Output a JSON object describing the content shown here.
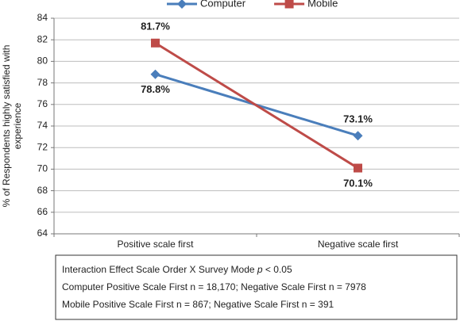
{
  "chart_data": {
    "type": "line",
    "y_label": [
      "% of Respondents highly satisfied with",
      "experience"
    ],
    "categories": [
      "Positive scale first",
      "Negative scale first"
    ],
    "series": [
      {
        "name": "Computer",
        "color": "#4a7ebb",
        "marker": "diamond",
        "values": [
          78.8,
          73.1
        ],
        "value_labels": [
          "78.8%",
          "73.1%"
        ]
      },
      {
        "name": "Mobile",
        "color": "#be4b48",
        "marker": "square",
        "values": [
          81.7,
          70.1
        ],
        "value_labels": [
          "81.7%",
          "70.1%"
        ]
      }
    ],
    "ylim": [
      64,
      84
    ],
    "yticks": [
      64,
      66,
      68,
      70,
      72,
      74,
      76,
      78,
      80,
      82,
      84
    ],
    "grid": true,
    "legend": "top",
    "notes": [
      [
        "Interaction Effect Scale Order X Survey Mode ",
        "p",
        " < 0.05"
      ],
      [
        "Computer Positive Scale First n = 18,170; Negative Scale First n = 7978"
      ],
      [
        "Mobile Positive Scale First n = 867; Negative Scale First n = 391"
      ]
    ]
  }
}
